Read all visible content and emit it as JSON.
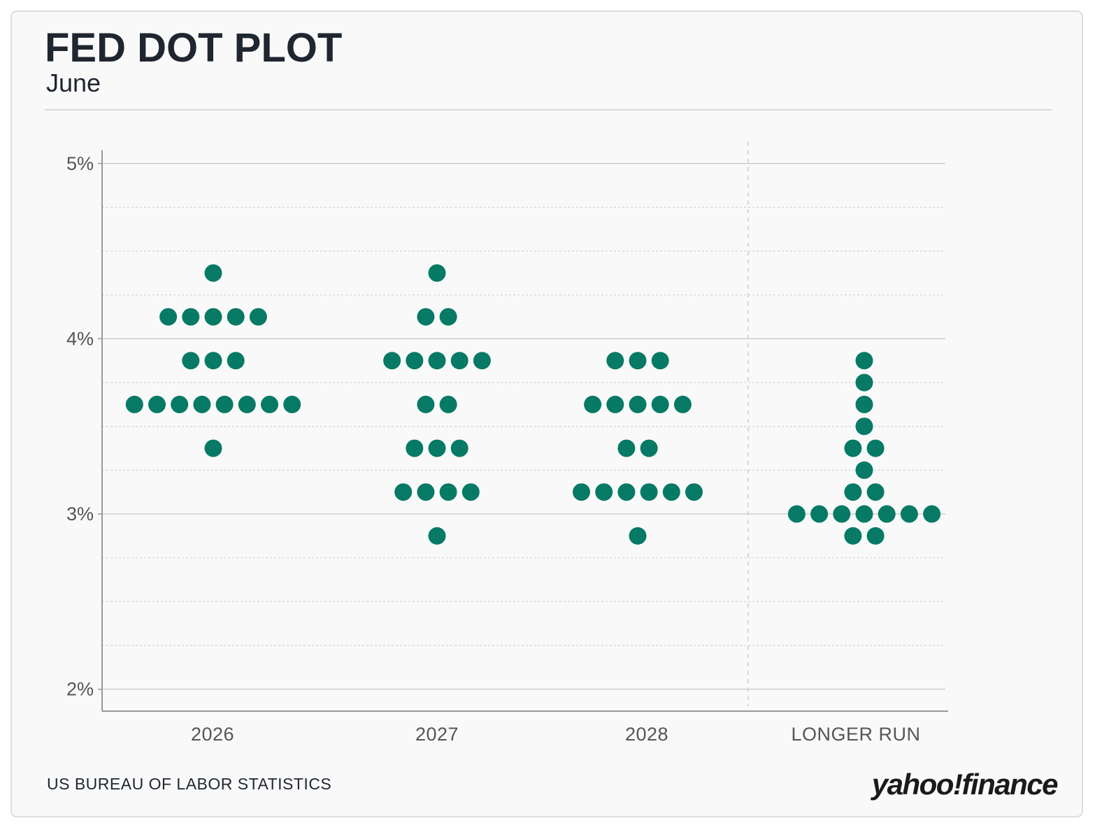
{
  "chart_data": {
    "type": "dot",
    "title": "FED DOT PLOT",
    "subtitle": "June",
    "source": "US BUREAU OF LABOR STATISTICS",
    "logo": "yahoo!finance",
    "color": "#077a65",
    "categories": [
      "2026",
      "2027",
      "2028",
      "LONGER RUN"
    ],
    "values": [
      [
        4.375,
        4.125,
        4.125,
        4.125,
        4.125,
        4.125,
        3.875,
        3.875,
        3.875,
        3.625,
        3.625,
        3.625,
        3.625,
        3.625,
        3.625,
        3.625,
        3.625,
        3.375
      ],
      [
        4.375,
        4.125,
        4.125,
        3.875,
        3.875,
        3.875,
        3.875,
        3.875,
        3.625,
        3.625,
        3.375,
        3.375,
        3.375,
        3.125,
        3.125,
        3.125,
        3.125,
        2.875
      ],
      [
        3.875,
        3.875,
        3.875,
        3.625,
        3.625,
        3.625,
        3.625,
        3.625,
        3.375,
        3.375,
        3.125,
        3.125,
        3.125,
        3.125,
        3.125,
        3.125,
        2.875
      ],
      [
        3.875,
        3.75,
        3.625,
        3.5,
        3.375,
        3.375,
        3.25,
        3.125,
        3.125,
        3.0,
        3.0,
        3.0,
        3.0,
        3.0,
        3.0,
        3.0,
        2.875,
        2.875
      ]
    ],
    "ylim": [
      1.875,
      5.075
    ],
    "yticks": [
      {
        "value": 2,
        "label": "2%"
      },
      {
        "value": 3,
        "label": "3%"
      },
      {
        "value": 4,
        "label": "4%"
      },
      {
        "value": 5,
        "label": "5%"
      }
    ],
    "minor_yticks": [
      2.25,
      2.5,
      2.75,
      3.25,
      3.5,
      3.75,
      4.25,
      4.5,
      4.75
    ],
    "grid": true
  }
}
